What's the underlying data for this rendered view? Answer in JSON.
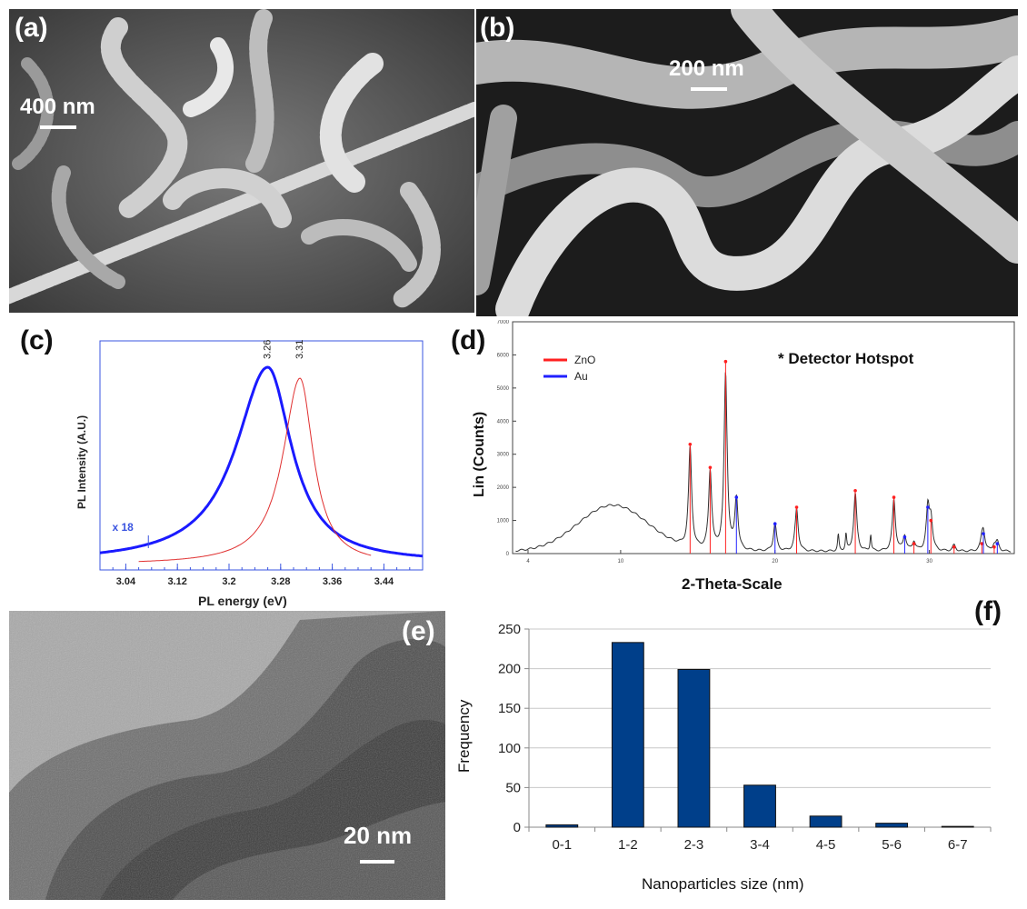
{
  "panels": {
    "a": {
      "label": "(a)",
      "scale": "400 nm"
    },
    "b": {
      "label": "(b)",
      "scale": "200 nm"
    },
    "c": {
      "label": "(c)"
    },
    "d": {
      "label": "(d)"
    },
    "e": {
      "label": "(e)",
      "scale": "20 nm"
    },
    "f": {
      "label": "(f)"
    }
  },
  "chart_data": [
    {
      "type": "line",
      "panel": "c",
      "xlabel": "PL energy (eV)",
      "ylabel": "PL Intensity (A.U.)",
      "xticks": [
        "3.04",
        "3.12",
        "3.2",
        "3.28",
        "3.36",
        "3.44"
      ],
      "xlim": [
        3.0,
        3.5
      ],
      "annotations": [
        "3.26",
        "3.31",
        "x 18"
      ],
      "series": [
        {
          "color": "#1a1aff",
          "peak_x": 3.26
        },
        {
          "color": "#e03030",
          "peak_x": 3.31
        }
      ],
      "frame_color": "#3a54e0"
    },
    {
      "type": "line",
      "panel": "d",
      "xlabel": "2-Theta-Scale",
      "ylabel": "Lin (Counts)",
      "yticks": [
        "0",
        "1000",
        "2000",
        "3000",
        "4000",
        "5000",
        "6000",
        "7000"
      ],
      "ylim": [
        0,
        7000
      ],
      "xticks": [
        "4",
        "10",
        "20",
        "30"
      ],
      "legend": [
        {
          "name": "ZnO",
          "color": "#ff2020"
        },
        {
          "name": "Au",
          "color": "#2020ff"
        }
      ],
      "annotation": "* Detector Hotspot",
      "zno_peaks": [
        {
          "x": 14.5,
          "y": 3300
        },
        {
          "x": 15.8,
          "y": 2600
        },
        {
          "x": 16.8,
          "y": 5800
        },
        {
          "x": 21.4,
          "y": 1400
        },
        {
          "x": 25.2,
          "y": 1900
        },
        {
          "x": 27.7,
          "y": 1700
        },
        {
          "x": 29.0,
          "y": 300
        },
        {
          "x": 30.1,
          "y": 1000
        },
        {
          "x": 31.6,
          "y": 200
        },
        {
          "x": 33.4,
          "y": 300
        },
        {
          "x": 34.2,
          "y": 200
        }
      ],
      "au_peaks": [
        {
          "x": 17.5,
          "y": 1700
        },
        {
          "x": 20.0,
          "y": 900
        },
        {
          "x": 28.4,
          "y": 500
        },
        {
          "x": 29.9,
          "y": 1400
        },
        {
          "x": 33.5,
          "y": 600
        },
        {
          "x": 34.4,
          "y": 300
        }
      ]
    },
    {
      "type": "bar",
      "panel": "f",
      "xlabel": "Nanoparticles size (nm)",
      "ylabel": "Frequency",
      "categories": [
        "0-1",
        "1-2",
        "2-3",
        "3-4",
        "4-5",
        "5-6",
        "6-7"
      ],
      "values": [
        3,
        233,
        199,
        53,
        14,
        5,
        1
      ],
      "ylim": [
        0,
        250
      ],
      "yticks": [
        "0",
        "50",
        "100",
        "150",
        "200",
        "250"
      ],
      "grid": true,
      "bar_color": "#003f8a"
    }
  ]
}
